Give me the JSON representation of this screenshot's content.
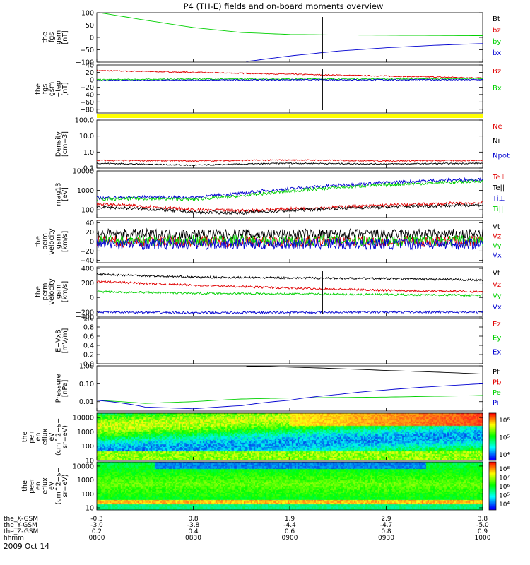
{
  "title": "P4 (TH-E) fields and on-board moments overview",
  "date_label": "2009 Oct 14",
  "time_axis": {
    "row_labels": [
      "the_X-GSM",
      "the_Y-GSM",
      "the_Z-GSM",
      "hhmm"
    ],
    "columns": [
      {
        "hhmm": "0800",
        "x": "-0.3",
        "y": "-3.0",
        "z": "0.2"
      },
      {
        "hhmm": "0830",
        "x": "0.8",
        "y": "-3.8",
        "z": "0.4"
      },
      {
        "hhmm": "0900",
        "x": "1.9",
        "y": "-4.4",
        "z": "0.6"
      },
      {
        "hhmm": "0930",
        "x": "2.9",
        "y": "-4.7",
        "z": "0.8"
      },
      {
        "hhmm": "1000",
        "x": "3.8",
        "y": "-5.0",
        "z": "0.9"
      }
    ]
  },
  "colors": {
    "black": "#000000",
    "red": "#e00000",
    "green": "#00d000",
    "blue": "#0000d0",
    "yellow": "#ffff00"
  },
  "chart_data": [
    {
      "id": "p1",
      "type": "line",
      "ylabel_lines": [
        "the",
        "fgs",
        "gsm",
        "[nT]"
      ],
      "ylim": [
        -100,
        100
      ],
      "ticks": [
        "100",
        "50",
        "0",
        "−50",
        "−100"
      ],
      "legend": [
        {
          "name": "Bt",
          "color": "black"
        },
        {
          "name": "bz",
          "color": "red"
        },
        {
          "name": "by",
          "color": "green"
        },
        {
          "name": "bx",
          "color": "blue"
        }
      ],
      "x": [
        8.0,
        8.25,
        8.5,
        8.75,
        9.0,
        9.25,
        9.5,
        9.75,
        10.0
      ],
      "series": [
        {
          "name": "by",
          "color": "green",
          "values": [
            102,
            70,
            40,
            20,
            12,
            10,
            9,
            8,
            7
          ]
        },
        {
          "name": "bx",
          "color": "blue",
          "values": [
            null,
            null,
            null,
            -100,
            -75,
            -55,
            -42,
            -32,
            -25
          ]
        }
      ]
    },
    {
      "id": "p2",
      "type": "line",
      "ylabel_lines": [
        "the",
        "fgs",
        "gsm",
        "−tep",
        "[nT]"
      ],
      "ylim": [
        -90,
        40
      ],
      "ticks": [
        "40",
        "20",
        "0",
        "−20",
        "−40",
        "−60",
        "−80"
      ],
      "legend": [
        {
          "name": "Bz",
          "color": "red"
        },
        {
          "name": "Bx",
          "color": "green"
        }
      ],
      "x": [
        8.0,
        8.5,
        9.0,
        9.5,
        10.0
      ],
      "series": [
        {
          "name": "Bz",
          "color": "red",
          "values": [
            25,
            20,
            15,
            10,
            5
          ]
        },
        {
          "name": "Bx",
          "color": "green",
          "values": [
            0,
            2,
            2,
            2,
            3
          ]
        },
        {
          "name": "",
          "color": "blue",
          "values": [
            -2,
            -1,
            0,
            0,
            0
          ]
        }
      ]
    },
    {
      "id": "p3",
      "type": "line",
      "ylabel_lines": [
        "Density",
        "[cm−3]"
      ],
      "scale": "log",
      "ylim": [
        0.1,
        100
      ],
      "ticks": [
        "100.0",
        "10.0",
        "1.0",
        "0.1"
      ],
      "legend": [
        {
          "name": "Ne",
          "color": "red"
        },
        {
          "name": "Ni",
          "color": "black"
        },
        {
          "name": "Npot",
          "color": "blue"
        }
      ],
      "x": [
        8.0,
        8.5,
        9.0,
        9.5,
        10.0
      ],
      "series": [
        {
          "name": "Ne",
          "color": "red",
          "values": [
            0.3,
            0.28,
            0.32,
            0.28,
            0.3
          ]
        },
        {
          "name": "Ni",
          "color": "black",
          "values": [
            0.2,
            0.15,
            0.2,
            0.18,
            0.2
          ]
        }
      ]
    },
    {
      "id": "p4",
      "type": "line",
      "ylabel_lines": [
        "mag13",
        "[eV]"
      ],
      "scale": "log",
      "ylim": [
        40,
        10000
      ],
      "ticks": [
        "10000",
        "1000",
        "100"
      ],
      "legend": [
        {
          "name": "Te⊥",
          "color": "red"
        },
        {
          "name": "Te||",
          "color": "black"
        },
        {
          "name": "Ti⊥",
          "color": "blue"
        },
        {
          "name": "Ti||",
          "color": "green"
        }
      ],
      "x": [
        8.0,
        8.25,
        8.5,
        8.75,
        9.0,
        9.25,
        9.5,
        9.75,
        10.0
      ],
      "series": [
        {
          "name": "Ti⊥",
          "color": "blue",
          "values": [
            400,
            450,
            420,
            700,
            1200,
            1800,
            2500,
            3200,
            3800
          ]
        },
        {
          "name": "Ti||",
          "color": "green",
          "values": [
            350,
            380,
            350,
            500,
            900,
            1400,
            1900,
            2400,
            3000
          ]
        },
        {
          "name": "Te⊥",
          "color": "red",
          "values": [
            200,
            150,
            100,
            90,
            110,
            140,
            170,
            200,
            230
          ]
        },
        {
          "name": "Te||",
          "color": "black",
          "values": [
            140,
            110,
            75,
            70,
            90,
            120,
            140,
            160,
            180
          ]
        }
      ]
    },
    {
      "id": "p5",
      "type": "line",
      "ylabel_lines": [
        "the",
        "peim",
        "velocity",
        "gsm",
        "[km/s]"
      ],
      "ylim": [
        -45,
        45
      ],
      "ticks": [
        "40",
        "20",
        "0",
        "−20",
        "−40"
      ],
      "legend": [
        {
          "name": "Vt",
          "color": "black"
        },
        {
          "name": "Vz",
          "color": "red"
        },
        {
          "name": "Vy",
          "color": "green"
        },
        {
          "name": "Vx",
          "color": "blue"
        }
      ],
      "x": [
        8.0,
        10.0
      ],
      "series": [
        {
          "name": "Vt",
          "color": "black",
          "values": [
            15,
            15
          ]
        },
        {
          "name": "Vz",
          "color": "red",
          "values": [
            0,
            0
          ]
        },
        {
          "name": "Vy",
          "color": "green",
          "values": [
            2,
            2
          ]
        },
        {
          "name": "Vx",
          "color": "blue",
          "values": [
            -5,
            -5
          ]
        }
      ]
    },
    {
      "id": "p6",
      "type": "line",
      "ylabel_lines": [
        "the",
        "perm",
        "velocity",
        "gsm",
        "[km/s]"
      ],
      "ylim": [
        -260,
        420
      ],
      "ticks": [
        "400",
        "200",
        "0",
        "−200",
        "−400"
      ],
      "legend": [
        {
          "name": "Vt",
          "color": "black"
        },
        {
          "name": "Vz",
          "color": "red"
        },
        {
          "name": "Vy",
          "color": "green"
        },
        {
          "name": "Vx",
          "color": "blue"
        }
      ],
      "x": [
        8.0,
        8.5,
        9.0,
        9.5,
        10.0
      ],
      "series": [
        {
          "name": "Vt",
          "color": "black",
          "values": [
            320,
            280,
            270,
            260,
            240
          ]
        },
        {
          "name": "Vz",
          "color": "red",
          "values": [
            220,
            170,
            130,
            100,
            80
          ]
        },
        {
          "name": "Vy",
          "color": "green",
          "values": [
            80,
            60,
            50,
            40,
            30
          ]
        },
        {
          "name": "Vx",
          "color": "blue",
          "values": [
            -200,
            -210,
            -205,
            -200,
            -200
          ]
        }
      ]
    },
    {
      "id": "p7",
      "type": "line",
      "ylabel_lines": [
        "E−VxB",
        "[mV/m]"
      ],
      "ylim": [
        0,
        1.0
      ],
      "ticks": [
        "1.0",
        "0.8",
        "0.6",
        "0.4",
        "0.2",
        "0.0"
      ],
      "legend": [
        {
          "name": "Ez",
          "color": "red"
        },
        {
          "name": "Ey",
          "color": "green"
        },
        {
          "name": "Ex",
          "color": "blue"
        }
      ],
      "x": [],
      "series": []
    },
    {
      "id": "p8",
      "type": "line",
      "ylabel_lines": [
        "Pressure",
        "[nPa]"
      ],
      "scale": "log",
      "ylim": [
        0.003,
        1.0
      ],
      "ticks": [
        "1.00",
        "0.10",
        "0.01"
      ],
      "legend": [
        {
          "name": "Pt",
          "color": "black"
        },
        {
          "name": "Pb",
          "color": "red"
        },
        {
          "name": "Pe",
          "color": "green"
        },
        {
          "name": "Pi",
          "color": "blue"
        }
      ],
      "x": [
        8.0,
        8.25,
        8.5,
        8.75,
        9.0,
        9.25,
        9.5,
        9.75,
        10.0
      ],
      "series": [
        {
          "name": "Pt",
          "color": "black",
          "values": [
            null,
            null,
            null,
            1.0,
            0.85,
            0.7,
            0.55,
            0.45,
            0.35
          ]
        },
        {
          "name": "Pe",
          "color": "green",
          "values": [
            0.012,
            0.008,
            0.01,
            0.014,
            0.016,
            0.017,
            0.018,
            0.02,
            0.022
          ]
        },
        {
          "name": "Pi",
          "color": "blue",
          "values": [
            0.012,
            0.005,
            0.004,
            0.006,
            0.012,
            0.025,
            0.045,
            0.07,
            0.1
          ]
        }
      ]
    },
    {
      "id": "p9",
      "type": "heatmap",
      "ylabel_lines": [
        "the",
        "peir",
        "en",
        "eflux",
        "eV",
        "(cm^2−s−",
        "sr−eV)"
      ],
      "scale": "log",
      "ylim": [
        10,
        20000
      ],
      "ticks": [
        "10000",
        "1000",
        "100",
        "10"
      ],
      "colorbar_ticks": [
        "10⁶",
        "10⁵",
        "10⁴"
      ]
    },
    {
      "id": "p10",
      "type": "heatmap",
      "ylabel_lines": [
        "the",
        "peer",
        "en",
        "eflux",
        "eV",
        "(cm^2−s−",
        "sr−eV)"
      ],
      "scale": "log",
      "ylim": [
        7,
        20000
      ],
      "ticks": [
        "10000",
        "1000",
        "100",
        "10"
      ],
      "colorbar_ticks": [
        "10⁸",
        "10⁷",
        "10⁶",
        "10⁵",
        "10⁴"
      ]
    }
  ]
}
